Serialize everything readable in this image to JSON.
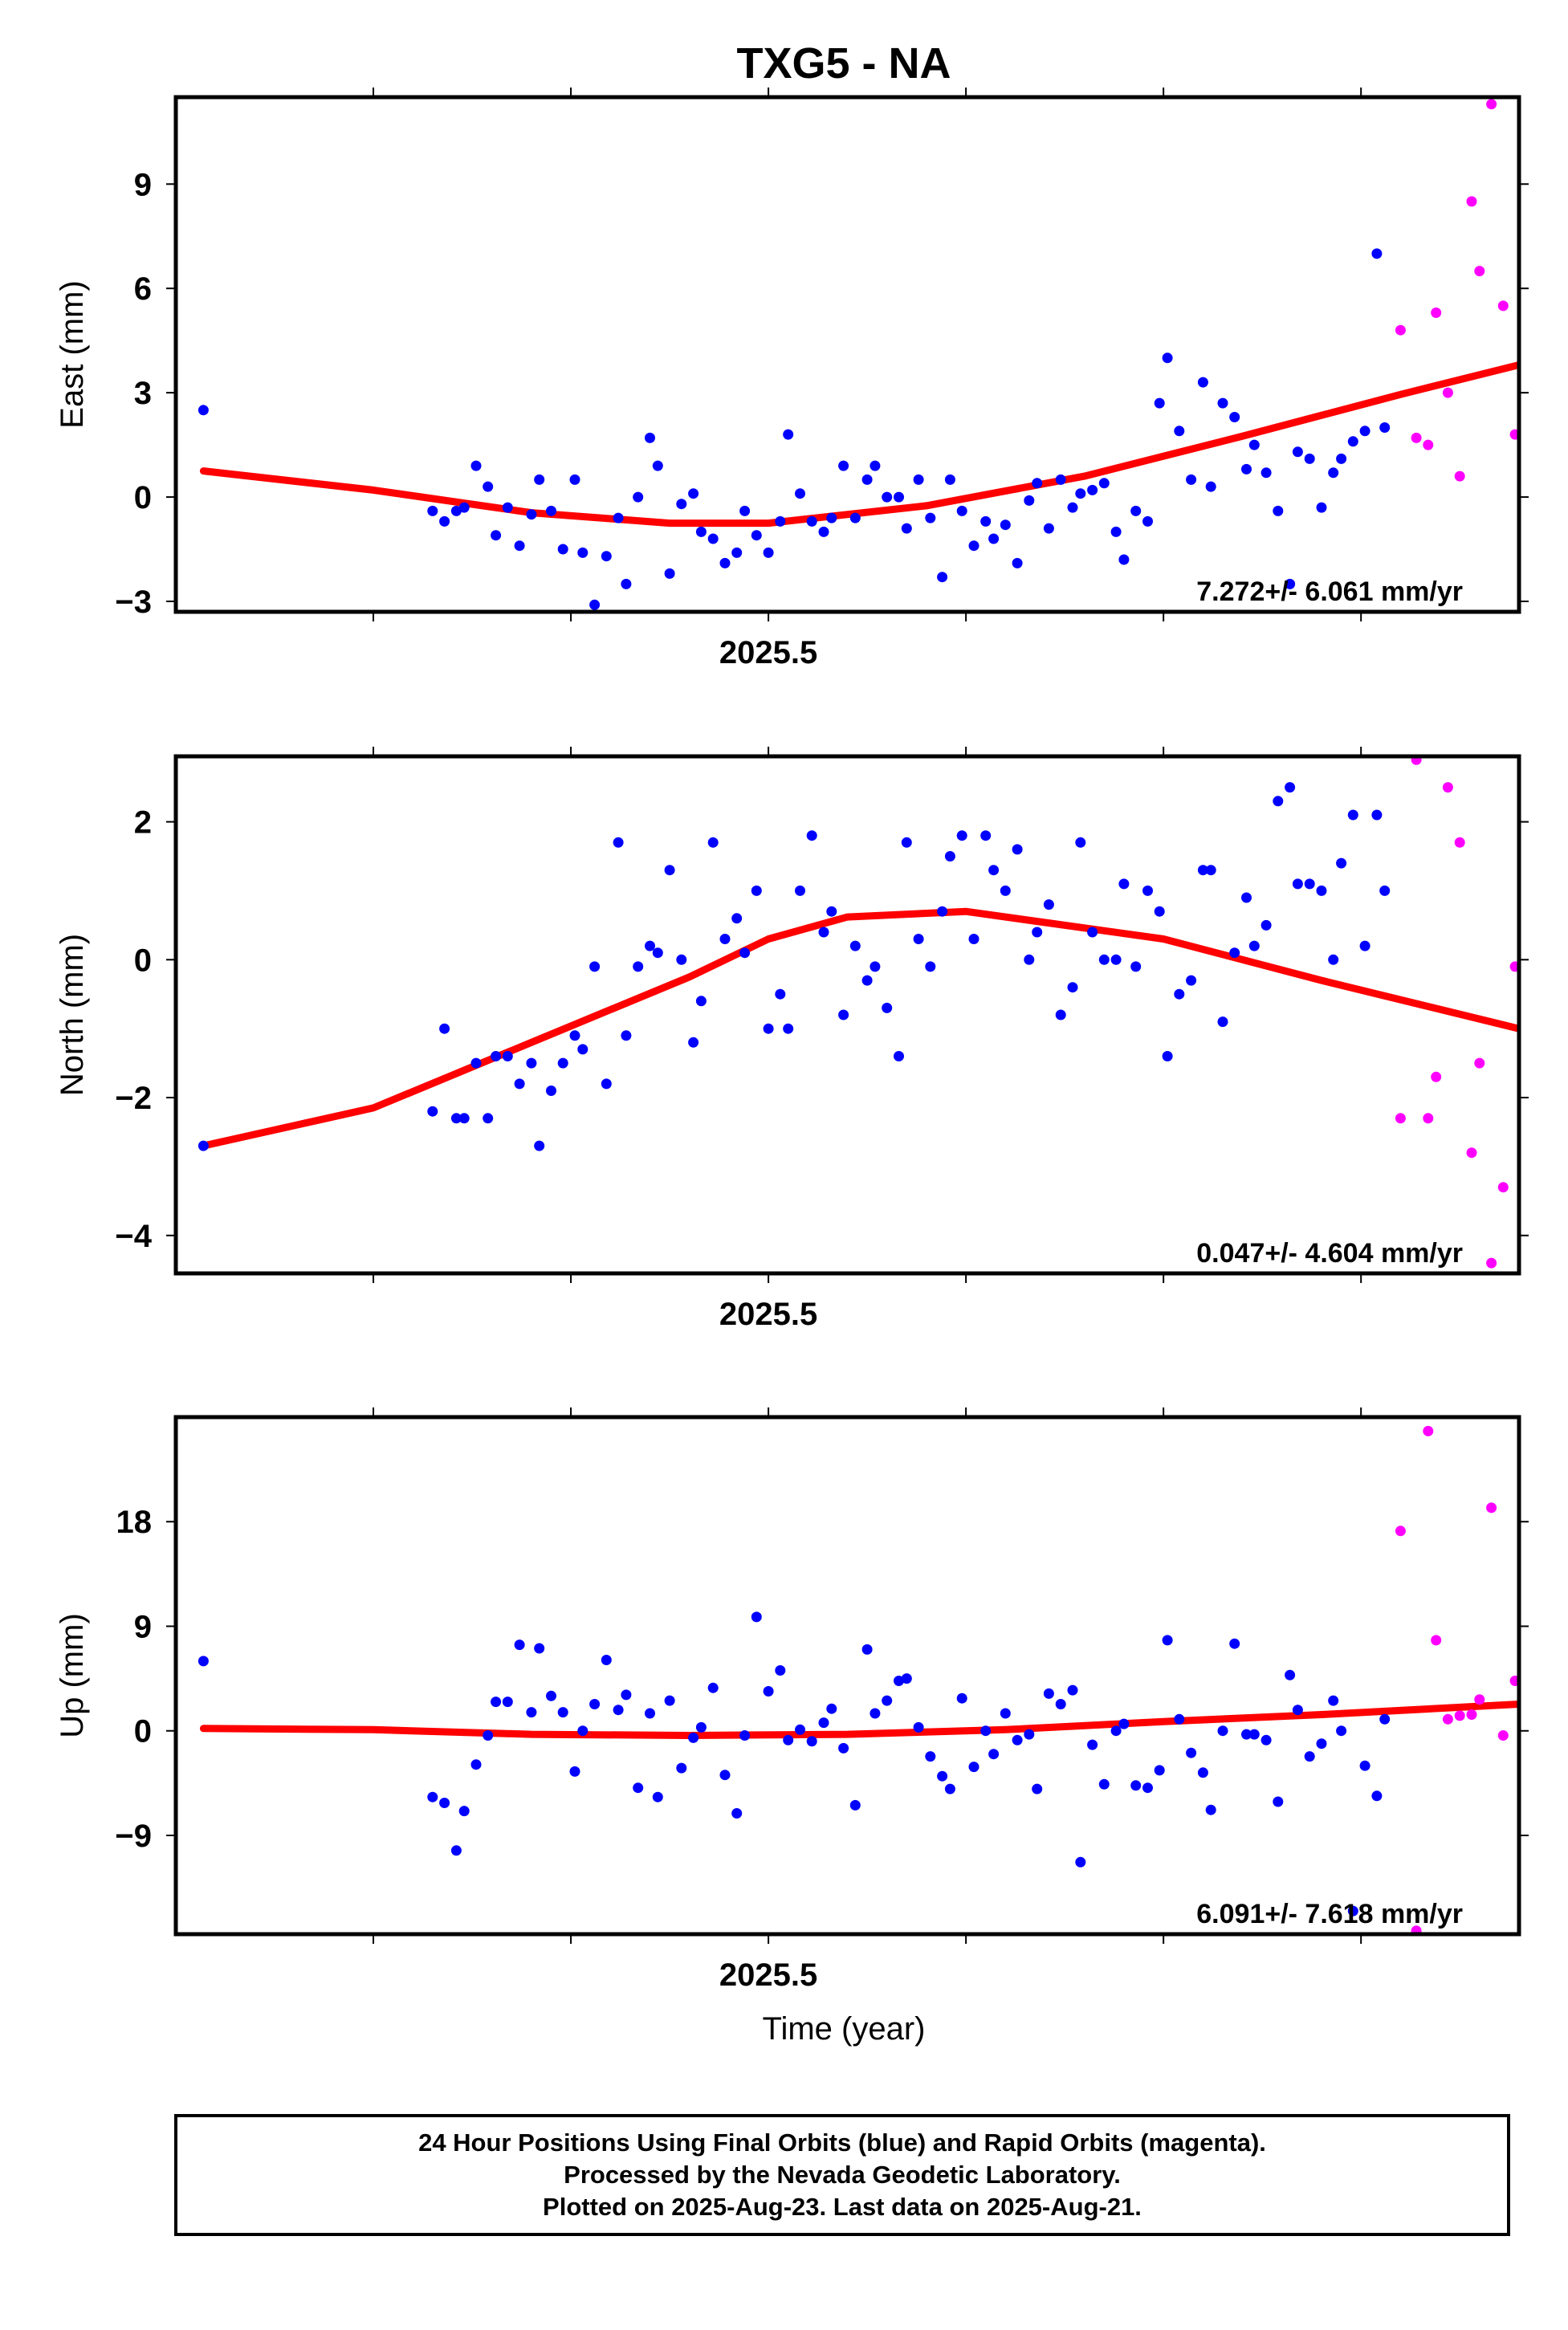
{
  "title": "TXG5 - NA",
  "xlabel": "Time (year)",
  "footer": {
    "line1": "24 Hour Positions Using Final Orbits (blue) and Rapid Orbits (magenta).",
    "line2": "Processed by the Nevada Geodetic Laboratory.",
    "line3": "Plotted on 2025-Aug-23. Last data on 2025-Aug-21."
  },
  "colors": {
    "final": "#0000ff",
    "rapid": "#ff00ff",
    "fit": "#ff0000"
  },
  "chart_data": [
    {
      "type": "scatter",
      "ylabel": "East (mm)",
      "annotation": "7.272+/- 6.061 mm/yr",
      "xlim": [
        2025.35,
        2025.69
      ],
      "ylim": [
        -3.3,
        11.5
      ],
      "xticks": [
        2025.5
      ],
      "yticks": [
        -3,
        0,
        3,
        6,
        9
      ],
      "series": [
        {
          "x": [
            2025.357,
            2025.415,
            2025.418,
            2025.421,
            2025.423,
            2025.426,
            2025.429,
            2025.431,
            2025.434,
            2025.437,
            2025.44,
            2025.442,
            2025.445,
            2025.448,
            2025.451,
            2025.453,
            2025.456,
            2025.459,
            2025.462,
            2025.464,
            2025.467,
            2025.47,
            2025.472,
            2025.475,
            2025.478,
            2025.481,
            2025.483,
            2025.486,
            2025.489,
            2025.492,
            2025.494,
            2025.497,
            2025.5,
            2025.503,
            2025.505,
            2025.508,
            2025.511,
            2025.514,
            2025.516,
            2025.519,
            2025.522,
            2025.525,
            2025.527,
            2025.53,
            2025.533,
            2025.535,
            2025.538,
            2025.541,
            2025.544,
            2025.546,
            2025.549,
            2025.552,
            2025.555,
            2025.557,
            2025.56,
            2025.563,
            2025.566,
            2025.568,
            2025.571,
            2025.574,
            2025.577,
            2025.579,
            2025.582,
            2025.585,
            2025.588,
            2025.59,
            2025.593,
            2025.596,
            2025.599,
            2025.601,
            2025.604,
            2025.607,
            2025.61,
            2025.612,
            2025.615,
            2025.618,
            2025.621,
            2025.623,
            2025.626,
            2025.629,
            2025.632,
            2025.634,
            2025.637,
            2025.64,
            2025.643,
            2025.645,
            2025.648,
            2025.651,
            2025.654,
            2025.656
          ],
          "y": [
            2.5,
            -0.4,
            -0.7,
            -0.4,
            -0.3,
            0.9,
            0.3,
            -1.1,
            -0.3,
            -1.4,
            -0.5,
            0.5,
            -0.4,
            -1.5,
            0.5,
            -1.6,
            -3.1,
            -1.7,
            -0.6,
            -2.5,
            0.0,
            1.7,
            0.9,
            -2.2,
            -0.2,
            0.1,
            -1.0,
            -1.2,
            -1.9,
            -1.6,
            -0.4,
            -1.1,
            -1.6,
            -0.7,
            1.8,
            0.1,
            -0.7,
            -1.0,
            -0.6,
            0.9,
            -0.6,
            0.5,
            0.9,
            0.0,
            0.0,
            -0.9,
            0.5,
            -0.6,
            -2.3,
            0.5,
            -0.4,
            -1.4,
            -0.7,
            -1.2,
            -0.8,
            -1.9,
            -0.1,
            0.4,
            -0.9,
            0.5,
            -0.3,
            0.1,
            0.2,
            0.4,
            -1.0,
            -1.8,
            -0.4,
            -0.7,
            2.7,
            4.0,
            1.9,
            0.5,
            3.3,
            0.3,
            2.7,
            2.3,
            0.8,
            1.5,
            0.7,
            -0.4,
            -2.5,
            1.3,
            1.1,
            -0.3,
            0.7,
            1.1,
            1.6,
            1.9,
            7.0,
            2.0
          ]
        },
        {
          "x": [
            2025.66,
            2025.664,
            2025.667,
            2025.669,
            2025.672,
            2025.675,
            2025.678,
            2025.68,
            2025.683,
            2025.686,
            2025.689
          ],
          "y": [
            4.8,
            1.7,
            1.5,
            5.3,
            3.0,
            0.6,
            8.5,
            6.5,
            11.3,
            5.5,
            1.8
          ]
        }
      ],
      "fit": {
        "x": [
          2025.357,
          2025.4,
          2025.44,
          2025.475,
          2025.5,
          2025.54,
          2025.58,
          2025.62,
          2025.66,
          2025.69
        ],
        "y": [
          0.75,
          0.2,
          -0.45,
          -0.75,
          -0.75,
          -0.25,
          0.6,
          1.75,
          2.95,
          3.8
        ]
      }
    },
    {
      "type": "scatter",
      "ylabel": "North (mm)",
      "annotation": "0.047+/- 4.604 mm/yr",
      "xlim": [
        2025.35,
        2025.69
      ],
      "ylim": [
        -4.55,
        2.95
      ],
      "xticks": [
        2025.5
      ],
      "yticks": [
        -4,
        -2,
        0,
        2
      ],
      "series": [
        {
          "x": [
            2025.357,
            2025.415,
            2025.418,
            2025.421,
            2025.423,
            2025.426,
            2025.429,
            2025.431,
            2025.434,
            2025.437,
            2025.44,
            2025.442,
            2025.445,
            2025.448,
            2025.451,
            2025.453,
            2025.456,
            2025.459,
            2025.462,
            2025.464,
            2025.467,
            2025.47,
            2025.472,
            2025.475,
            2025.478,
            2025.481,
            2025.483,
            2025.486,
            2025.489,
            2025.492,
            2025.494,
            2025.497,
            2025.5,
            2025.503,
            2025.505,
            2025.508,
            2025.511,
            2025.514,
            2025.516,
            2025.519,
            2025.522,
            2025.525,
            2025.527,
            2025.53,
            2025.533,
            2025.535,
            2025.538,
            2025.541,
            2025.544,
            2025.546,
            2025.549,
            2025.552,
            2025.555,
            2025.557,
            2025.56,
            2025.563,
            2025.566,
            2025.568,
            2025.571,
            2025.574,
            2025.577,
            2025.579,
            2025.582,
            2025.585,
            2025.588,
            2025.59,
            2025.593,
            2025.596,
            2025.599,
            2025.601,
            2025.604,
            2025.607,
            2025.61,
            2025.612,
            2025.615,
            2025.618,
            2025.621,
            2025.623,
            2025.626,
            2025.629,
            2025.632,
            2025.634,
            2025.637,
            2025.64,
            2025.643,
            2025.645,
            2025.648,
            2025.651,
            2025.654,
            2025.656
          ],
          "y": [
            -2.7,
            -2.2,
            -1.0,
            -2.3,
            -2.3,
            -1.5,
            -2.3,
            -1.4,
            -1.4,
            -1.8,
            -1.5,
            -2.7,
            -1.9,
            -1.5,
            -1.1,
            -1.3,
            -0.1,
            -1.8,
            1.7,
            -1.1,
            -0.1,
            0.2,
            0.1,
            1.3,
            0.0,
            -1.2,
            -0.6,
            1.7,
            0.3,
            0.6,
            0.1,
            1.0,
            -1.0,
            -0.5,
            -1.0,
            1.0,
            1.8,
            0.4,
            0.7,
            -0.8,
            0.2,
            -0.3,
            -0.1,
            -0.7,
            -1.4,
            1.7,
            0.3,
            -0.1,
            0.7,
            1.5,
            1.8,
            0.3,
            1.8,
            1.3,
            1.0,
            1.6,
            0.0,
            0.4,
            0.8,
            -0.8,
            -0.4,
            1.7,
            0.4,
            0.0,
            0.0,
            1.1,
            -0.1,
            1.0,
            0.7,
            -1.4,
            -0.5,
            -0.3,
            1.3,
            1.3,
            -0.9,
            0.1,
            0.9,
            0.2,
            0.5,
            2.3,
            2.5,
            1.1,
            1.1,
            1.0,
            0.0,
            1.4,
            2.1,
            0.2,
            2.1,
            1.0
          ],
          "note": "blue final-orbit points"
        },
        {
          "x": [
            2025.66,
            2025.664,
            2025.667,
            2025.669,
            2025.672,
            2025.675,
            2025.678,
            2025.68,
            2025.683,
            2025.686,
            2025.689
          ],
          "y": [
            -2.3,
            2.9,
            -2.3,
            -1.7,
            2.5,
            1.7,
            -2.8,
            -1.5,
            -4.4,
            -3.3,
            -0.1
          ]
        }
      ],
      "fit": {
        "x": [
          2025.357,
          2025.4,
          2025.44,
          2025.48,
          2025.5,
          2025.52,
          2025.55,
          2025.6,
          2025.64,
          2025.69
        ],
        "y": [
          -2.7,
          -2.15,
          -1.2,
          -0.25,
          0.3,
          0.62,
          0.7,
          0.3,
          -0.3,
          -1.0
        ]
      }
    },
    {
      "type": "scatter",
      "ylabel": "Up (mm)",
      "annotation": "6.091+/- 7.618 mm/yr",
      "xlim": [
        2025.35,
        2025.69
      ],
      "ylim": [
        -17.5,
        27
      ],
      "xticks": [
        2025.5
      ],
      "yticks": [
        -9,
        0,
        9,
        18
      ],
      "series": [
        {
          "x": [
            2025.357,
            2025.415,
            2025.418,
            2025.421,
            2025.423,
            2025.426,
            2025.429,
            2025.431,
            2025.434,
            2025.437,
            2025.44,
            2025.442,
            2025.445,
            2025.448,
            2025.451,
            2025.453,
            2025.456,
            2025.459,
            2025.462,
            2025.464,
            2025.467,
            2025.47,
            2025.472,
            2025.475,
            2025.478,
            2025.481,
            2025.483,
            2025.486,
            2025.489,
            2025.492,
            2025.494,
            2025.497,
            2025.5,
            2025.503,
            2025.505,
            2025.508,
            2025.511,
            2025.514,
            2025.516,
            2025.519,
            2025.522,
            2025.525,
            2025.527,
            2025.53,
            2025.533,
            2025.535,
            2025.538,
            2025.541,
            2025.544,
            2025.546,
            2025.549,
            2025.552,
            2025.555,
            2025.557,
            2025.56,
            2025.563,
            2025.566,
            2025.568,
            2025.571,
            2025.574,
            2025.577,
            2025.579,
            2025.582,
            2025.585,
            2025.588,
            2025.59,
            2025.593,
            2025.596,
            2025.599,
            2025.601,
            2025.604,
            2025.607,
            2025.61,
            2025.612,
            2025.615,
            2025.618,
            2025.621,
            2025.623,
            2025.626,
            2025.629,
            2025.632,
            2025.634,
            2025.637,
            2025.64,
            2025.643,
            2025.645,
            2025.648,
            2025.651,
            2025.654,
            2025.656
          ],
          "y": [
            6.0,
            -5.7,
            -6.2,
            -10.3,
            -6.9,
            -2.9,
            -0.4,
            2.5,
            2.5,
            7.4,
            1.6,
            7.1,
            3.0,
            1.6,
            -3.5,
            0.0,
            2.3,
            6.1,
            1.8,
            3.1,
            -4.9,
            1.5,
            -5.7,
            2.6,
            -3.2,
            -0.6,
            0.3,
            3.7,
            -3.8,
            -7.1,
            -0.4,
            9.8,
            3.4,
            5.2,
            -0.8,
            0.1,
            -0.9,
            0.7,
            1.9,
            -1.5,
            -6.4,
            7.0,
            1.5,
            2.6,
            4.3,
            4.5,
            0.3,
            -2.2,
            -3.9,
            -5.0,
            2.8,
            -3.1,
            0.0,
            -2.0,
            1.5,
            -0.8,
            -0.3,
            -5.0,
            3.2,
            2.3,
            3.5,
            -11.3,
            -1.2,
            -4.6,
            0.0,
            0.6,
            -4.7,
            -4.9,
            -3.4,
            7.8,
            1.0,
            -1.9,
            -3.6,
            -6.8,
            0.0,
            7.5,
            -0.3,
            -0.3,
            -0.8,
            -6.1,
            4.8,
            1.8,
            -2.2,
            -1.1,
            2.6,
            0.0,
            -15.5,
            -3.0,
            -5.6,
            1.0
          ],
          "note": "blue final-orbit points"
        },
        {
          "x": [
            2025.66,
            2025.664,
            2025.667,
            2025.669,
            2025.672,
            2025.675,
            2025.678,
            2025.68,
            2025.683,
            2025.686,
            2025.689
          ],
          "y": [
            17.2,
            -17.2,
            25.8,
            7.8,
            1.0,
            1.3,
            1.4,
            2.7,
            19.2,
            -0.4,
            4.3
          ]
        }
      ],
      "fit": {
        "x": [
          2025.357,
          2025.4,
          2025.44,
          2025.48,
          2025.52,
          2025.56,
          2025.6,
          2025.64,
          2025.69
        ],
        "y": [
          0.2,
          0.1,
          -0.3,
          -0.4,
          -0.3,
          0.1,
          0.8,
          1.4,
          2.3
        ]
      }
    }
  ]
}
